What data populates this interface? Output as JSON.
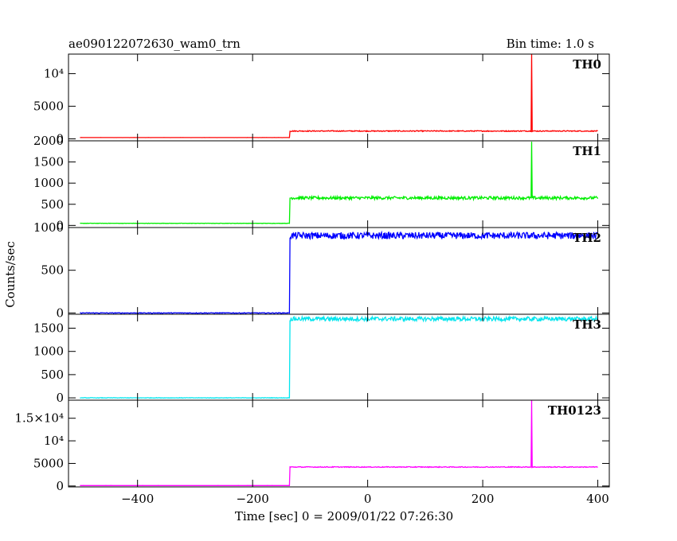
{
  "header": {
    "title": "ae090122072630_wam0_trn",
    "bin_time": "Bin time: 1.0 s"
  },
  "axes": {
    "xlabel": "Time [sec] 0 = 2009/01/22 07:26:30",
    "ylabel": "Counts/sec",
    "xlim": [
      -520,
      420
    ],
    "xticks": [
      -400,
      -200,
      0,
      200,
      400
    ],
    "xtick_labels": [
      "−400",
      "−200",
      "0",
      "200",
      "400"
    ]
  },
  "chart_data": [
    {
      "type": "line",
      "name": "TH0",
      "color": "#ff0000",
      "ylim": [
        -300,
        13000
      ],
      "yticks": [
        0,
        5000,
        10000
      ],
      "ytick_labels": [
        "0",
        "5000",
        "10⁴"
      ],
      "baseline_before": 200,
      "level_after": 1200,
      "noise": 70,
      "step_time": -135,
      "spike": {
        "x": 285,
        "y": 13000
      },
      "x_range": [
        -500,
        400
      ]
    },
    {
      "type": "line",
      "name": "TH1",
      "color": "#00ee00",
      "ylim": [
        -50,
        2000
      ],
      "yticks": [
        0,
        500,
        1000,
        1500,
        2000
      ],
      "ytick_labels": [
        "0",
        "500",
        "1000",
        "1500",
        "2000"
      ],
      "baseline_before": 50,
      "level_after": 650,
      "noise": 35,
      "step_time": -135,
      "spike": {
        "x": 285,
        "y": 1980
      },
      "x_range": [
        -500,
        400
      ]
    },
    {
      "type": "line",
      "name": "TH2",
      "color": "#0000ff",
      "ylim": [
        -15,
        1000
      ],
      "yticks": [
        0,
        500,
        1000
      ],
      "ytick_labels": [
        "0",
        "500",
        "1000"
      ],
      "baseline_before": 0,
      "level_after": 905,
      "noise": 40,
      "step_time": -135,
      "spike": null,
      "x_range": [
        -500,
        400
      ]
    },
    {
      "type": "line",
      "name": "TH3",
      "color": "#00e5ee",
      "ylim": [
        -50,
        1800
      ],
      "yticks": [
        0,
        500,
        1000,
        1500
      ],
      "ytick_labels": [
        "0",
        "500",
        "1000",
        "1500"
      ],
      "baseline_before": 0,
      "level_after": 1700,
      "noise": 45,
      "step_time": -135,
      "spike": null,
      "x_range": [
        -500,
        400
      ]
    },
    {
      "type": "line",
      "name": "TH0123",
      "color": "#ff00ff",
      "ylim": [
        -200,
        19000
      ],
      "yticks": [
        0,
        5000,
        10000,
        15000
      ],
      "ytick_labels": [
        "0",
        "5000",
        "10⁴",
        "1.5×10⁴"
      ],
      "baseline_before": 100,
      "level_after": 4200,
      "noise": 90,
      "step_time": -135,
      "spike": {
        "x": 285,
        "y": 19000
      },
      "x_range": [
        -500,
        400
      ]
    }
  ]
}
